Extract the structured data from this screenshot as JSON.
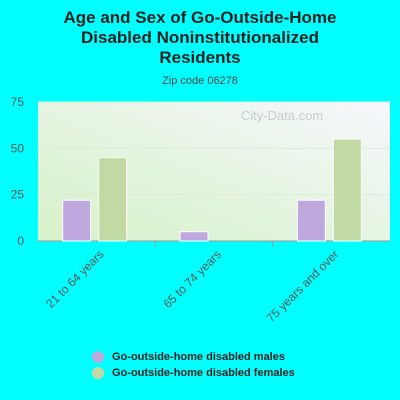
{
  "title_lines": [
    "Age and Sex of Go-Outside-Home",
    "Disabled Noninstitutionalized",
    "Residents"
  ],
  "subtitle": "Zip code 06278",
  "watermark": "City-Data.com",
  "colors": {
    "males": "#bfa8dd",
    "females": "#c2d9a3",
    "background": "#00ffff"
  },
  "chart_data": {
    "type": "bar",
    "title": "Age and Sex of Go-Outside-Home Disabled Noninstitutionalized Residents",
    "subtitle": "Zip code 06278",
    "categories": [
      "21 to 64 years",
      "65 to 74 years",
      "75 years and over"
    ],
    "series": [
      {
        "name": "Go-outside-home disabled males",
        "values": [
          22,
          5,
          22
        ]
      },
      {
        "name": "Go-outside-home disabled females",
        "values": [
          45,
          0,
          55
        ]
      }
    ],
    "ylim": [
      0,
      75
    ],
    "yticks": [
      0,
      25,
      50,
      75
    ],
    "grid": true,
    "legend": "bottom"
  }
}
